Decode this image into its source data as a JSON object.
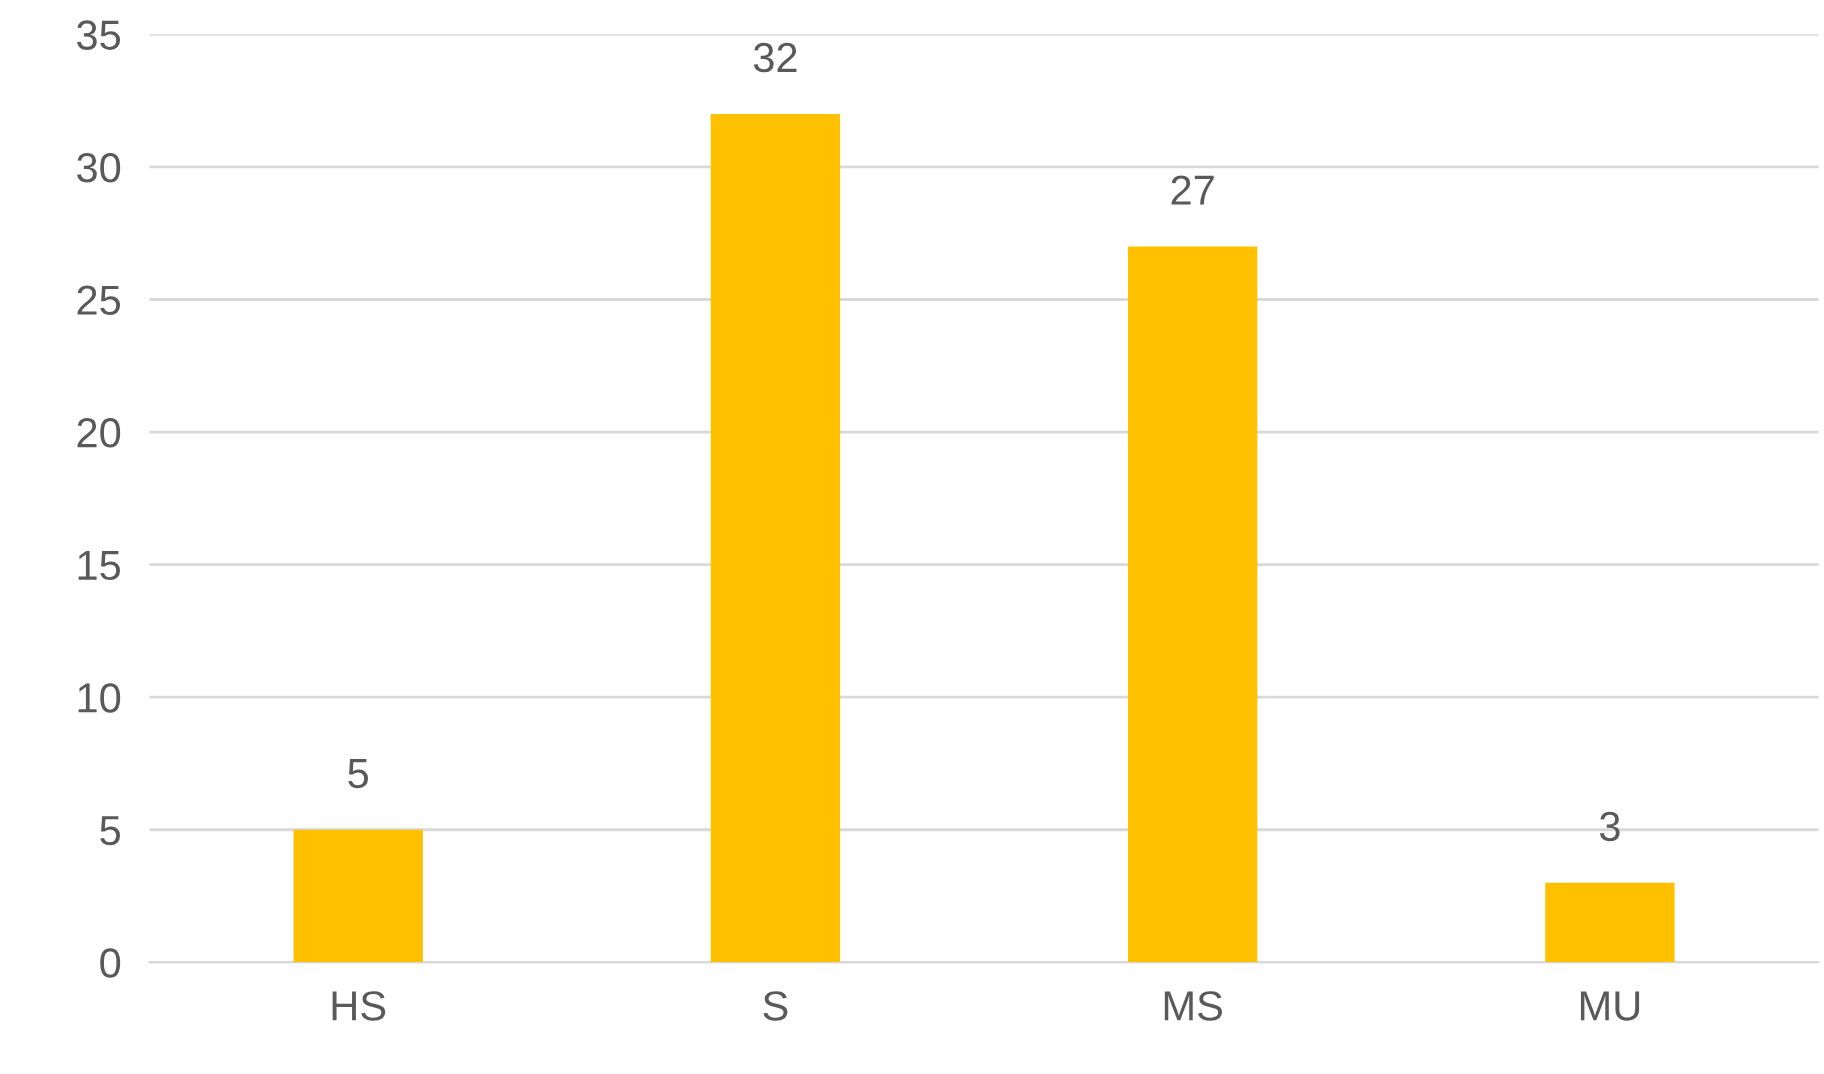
{
  "chart_data": {
    "type": "bar",
    "categories": [
      "HS",
      "S",
      "MS",
      "MU"
    ],
    "values": [
      5,
      32,
      27,
      3
    ],
    "color": "#ffc000",
    "ylim": [
      0,
      35
    ],
    "yticks": [
      0,
      5,
      10,
      15,
      20,
      25,
      30,
      35
    ],
    "grid": "y",
    "data_labels": true
  }
}
